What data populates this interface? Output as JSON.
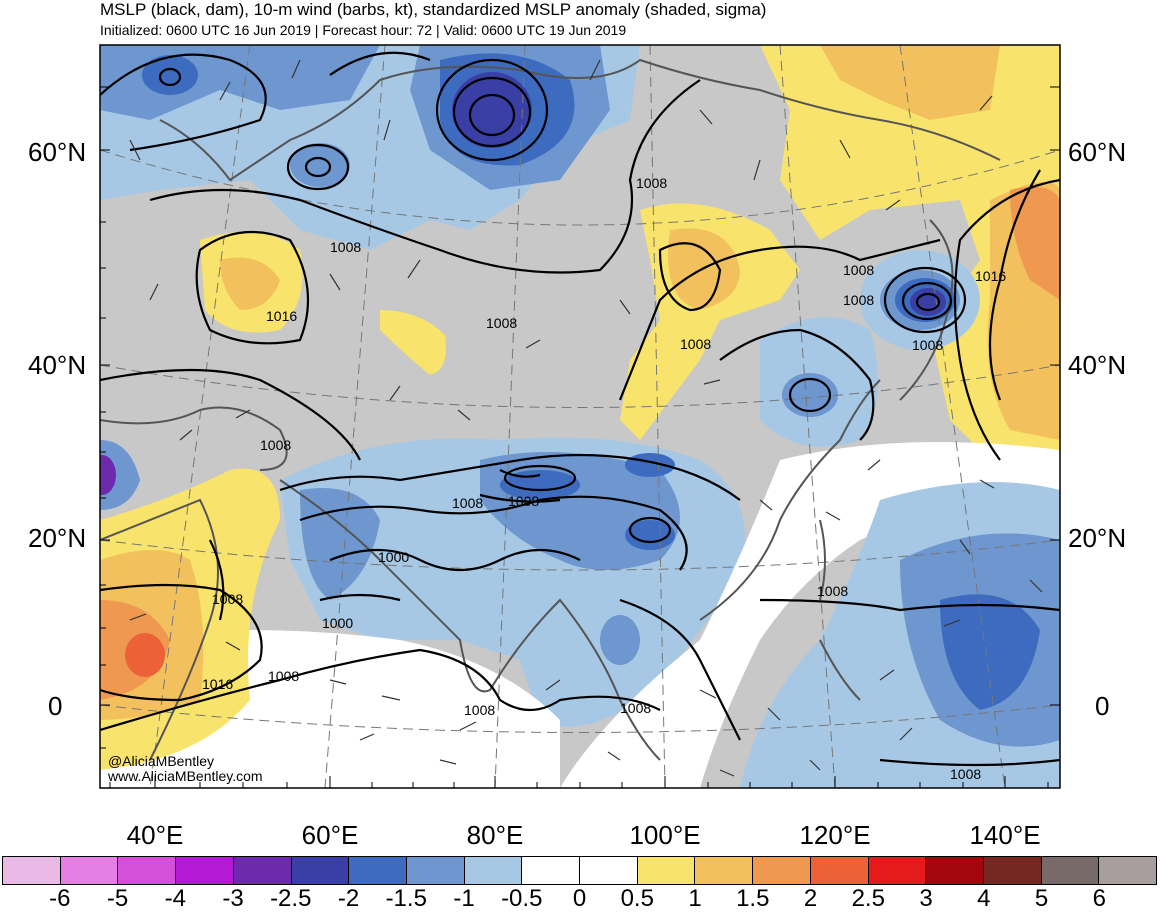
{
  "title": "MSLP (black, dam), 10-m wind (barbs, kt), standardized MSLP anomaly (shaded, sigma)",
  "subtitle": "Initialized: 0600 UTC 16 Jun 2019 | Forecast hour: 72 | Valid: 0600 UTC 19 Jun 2019",
  "credit": {
    "handle": "@AliciaMBentley",
    "website": "www.AliciaMBentley.com"
  },
  "lat_labels": [
    "60°N",
    "40°N",
    "20°N",
    "0"
  ],
  "lon_labels": [
    "40°E",
    "60°E",
    "80°E",
    "100°E",
    "120°E",
    "140°E"
  ],
  "isobar_labels": [
    "1008",
    "1008",
    "1016",
    "1008",
    "1008",
    "1016",
    "1008",
    "1008",
    "1008",
    "1008",
    "1008",
    "1008",
    "1008",
    "1000",
    "1008",
    "1000",
    "1016",
    "1008",
    "1008",
    "1008",
    "1008",
    "1008"
  ],
  "colorbar": {
    "colors": [
      "#ebb9e6",
      "#e57fe6",
      "#d64fd8",
      "#b21ad5",
      "#6e2aad",
      "#3a3fa6",
      "#3d6bbf",
      "#6e96cf",
      "#a6c8e5",
      "#ffffff",
      "#ffffff",
      "#f8e46c",
      "#f2c15d",
      "#ef9950",
      "#ec6137",
      "#e41b1b",
      "#a3070d",
      "#752721",
      "#786a68",
      "#a79e9d"
    ],
    "labels": [
      "-6",
      "-5",
      "-4",
      "-3",
      "-2.5",
      "-2",
      "-1.5",
      "-1",
      "-0.5",
      "0",
      "0.5",
      "1",
      "1.5",
      "2",
      "2.5",
      "3",
      "4",
      "5",
      "6"
    ]
  }
}
